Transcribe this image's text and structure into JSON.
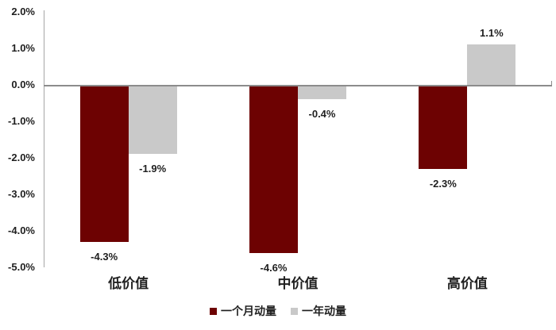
{
  "chart_data": {
    "type": "bar",
    "categories": [
      "低价值",
      "中价值",
      "高价值"
    ],
    "series": [
      {
        "name": "一个月动量",
        "color": "#6d0202",
        "values": [
          -4.3,
          -4.6,
          -2.3
        ],
        "data_labels": [
          "-4.3%",
          "-4.6%",
          "-2.3%"
        ]
      },
      {
        "name": "一年动量",
        "color": "#c9c9c9",
        "values": [
          -1.9,
          -0.4,
          1.1
        ],
        "data_labels": [
          "-1.9%",
          "-0.4%",
          "1.1%"
        ]
      }
    ],
    "y_axis": {
      "max": 2.0,
      "min": -5.0,
      "step": 1.0,
      "tick_labels": [
        "2.0%",
        "1.0%",
        "0.0%",
        "-1.0%",
        "-2.0%",
        "-3.0%",
        "-4.0%",
        "-5.0%"
      ]
    },
    "grid": "off",
    "legend_position": "bottom-center",
    "colors": {
      "axis_line": "#a6a6a6",
      "zero_line": "#8c8c8c",
      "text": "#1f1f1f",
      "background": "#ffffff"
    }
  }
}
